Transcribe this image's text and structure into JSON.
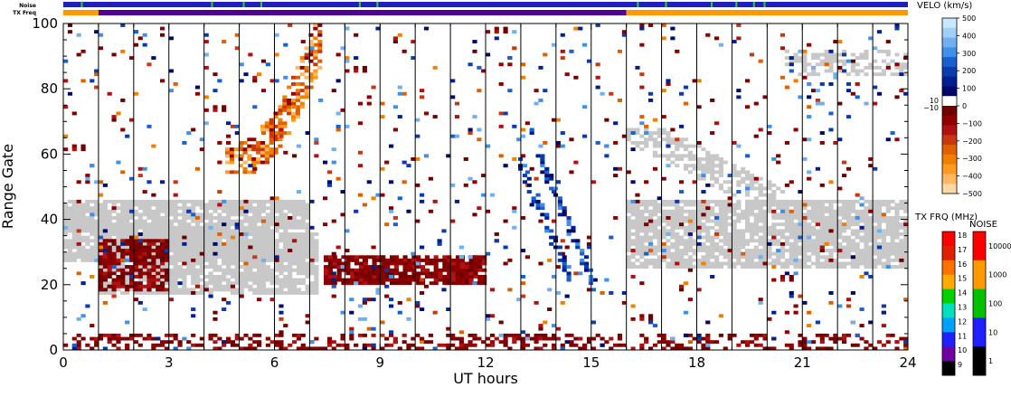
{
  "chart_data": {
    "type": "heatmap",
    "xlabel": "UT hours",
    "ylabel": "Range Gate",
    "xlim": [
      0,
      24
    ],
    "ylim": [
      0,
      100
    ],
    "x_ticks": [
      0,
      3,
      6,
      9,
      12,
      15,
      18,
      21,
      24
    ],
    "y_ticks": [
      0,
      20,
      40,
      60,
      80,
      100
    ],
    "scan_boundaries_hours": [
      1.0,
      2.0,
      3.0,
      4.0,
      5.0,
      6.0,
      7.0,
      8.0,
      9.0,
      10.0,
      11.0,
      12.0,
      13.0,
      14.0,
      15.0,
      16.0,
      17.0,
      18.0,
      19.0,
      20.0,
      21.0,
      22.0,
      23.0,
      24.0
    ],
    "status_strips": {
      "noise_label": "Noise",
      "txfreq_label": "TX Freq",
      "noise_segments": [
        {
          "from": 0,
          "to": 24,
          "color": "#2020c0"
        }
      ],
      "noise_ticks_green": [
        0.5,
        4.2,
        5.1,
        5.6,
        8.4,
        8.9,
        16.3,
        17.1,
        18.4,
        19.1,
        19.6,
        19.9
      ],
      "txfreq_segments": [
        {
          "from": 0,
          "to": 1.0,
          "color": "#ff9900"
        },
        {
          "from": 1.0,
          "to": 16.0,
          "color": "#500090"
        },
        {
          "from": 16.0,
          "to": 24,
          "color": "#ff9900"
        }
      ]
    },
    "velocity_colorbar": {
      "title": "VELO (km/s)",
      "ticks": [
        "500",
        "400",
        "300",
        "200",
        "100",
        "0",
        "−100",
        "−200",
        "−300",
        "−400",
        "−500"
      ],
      "side_ticks": [
        "10",
        "−10"
      ],
      "colors_top_to_bottom": [
        "#c8e8ff",
        "#a0d0f8",
        "#70b0f0",
        "#4090e8",
        "#1a60d0",
        "#0a3cb0",
        "#002090",
        "#000868",
        "#ffffff",
        "#700000",
        "#900000",
        "#b01010",
        "#c83810",
        "#e06000",
        "#f08000",
        "#ff9a20",
        "#ffb860",
        "#ffd8a8"
      ],
      "ground_scatter_color": "#c8c8c8"
    },
    "txfreq_colorbar": {
      "title": "TX FRQ (MHz)",
      "ticks": [
        "18",
        "17",
        "16",
        "15",
        "14",
        "13",
        "12",
        "11",
        "10",
        "9"
      ],
      "colors_top_to_bottom": [
        "#ff0000",
        "#e02000",
        "#ff7000",
        "#ffaa00",
        "#00d000",
        "#00e0c0",
        "#00a0ff",
        "#2020ff",
        "#7000a0",
        "#000000"
      ]
    },
    "noise_colorbar": {
      "title": "NOISE",
      "ticks": [
        "10000",
        "1000",
        "100",
        "10",
        "1"
      ],
      "colors_top_to_bottom": [
        "#ff0000",
        "#ff9900",
        "#00c000",
        "#2020ff",
        "#000000"
      ]
    },
    "regions": [
      {
        "label": "ground scatter band A",
        "class": "ground",
        "x0": 0.0,
        "x1": 7.0,
        "y0": 27,
        "y1": 46,
        "density": 0.85
      },
      {
        "label": "ground scatter band A2",
        "class": "ground",
        "x0": 1.0,
        "x1": 7.2,
        "y0": 17,
        "y1": 36,
        "density": 0.8
      },
      {
        "label": "ground scatter band B",
        "class": "ground",
        "x0": 16.0,
        "x1": 24.0,
        "y0": 25,
        "y1": 46,
        "density": 0.85
      },
      {
        "label": "ground scatter slant",
        "class": "ground",
        "x0": 16.0,
        "x1": 20.5,
        "y0": 44,
        "y1": 68,
        "density": 0.6
      },
      {
        "label": "ground scatter top right",
        "class": "ground",
        "x0": 20.5,
        "x1": 24.0,
        "y0": 84,
        "y1": 92,
        "density": 0.4
      },
      {
        "label": "negative velocity blob 1",
        "class": "neg",
        "x0": 1.0,
        "x1": 3.0,
        "y0": 18,
        "y1": 34,
        "density": 0.75
      },
      {
        "label": "negative velocity blob 2",
        "class": "neg",
        "x0": 7.4,
        "x1": 12.0,
        "y0": 20,
        "y1": 29,
        "density": 0.85
      },
      {
        "label": "negative velocity arc",
        "class": "neg",
        "x0": 4.6,
        "x1": 7.4,
        "y0": 54,
        "y1": 100,
        "density": 0.6
      },
      {
        "label": "negative scatter upper",
        "class": "neg",
        "x0": 0.0,
        "x1": 24.0,
        "y0": 0,
        "y1": 100,
        "density": 0.025
      },
      {
        "label": "near-range echoes",
        "class": "neg",
        "x0": 0.0,
        "x1": 24.0,
        "y0": 0,
        "y1": 5,
        "density": 0.35
      },
      {
        "label": "positive velocity streak",
        "class": "pos",
        "x0": 12.8,
        "x1": 15.2,
        "y0": 20,
        "y1": 60,
        "density": 0.55
      },
      {
        "label": "positive scatter",
        "class": "pos",
        "x0": 0.0,
        "x1": 24.0,
        "y0": 0,
        "y1": 100,
        "density": 0.02
      }
    ]
  }
}
